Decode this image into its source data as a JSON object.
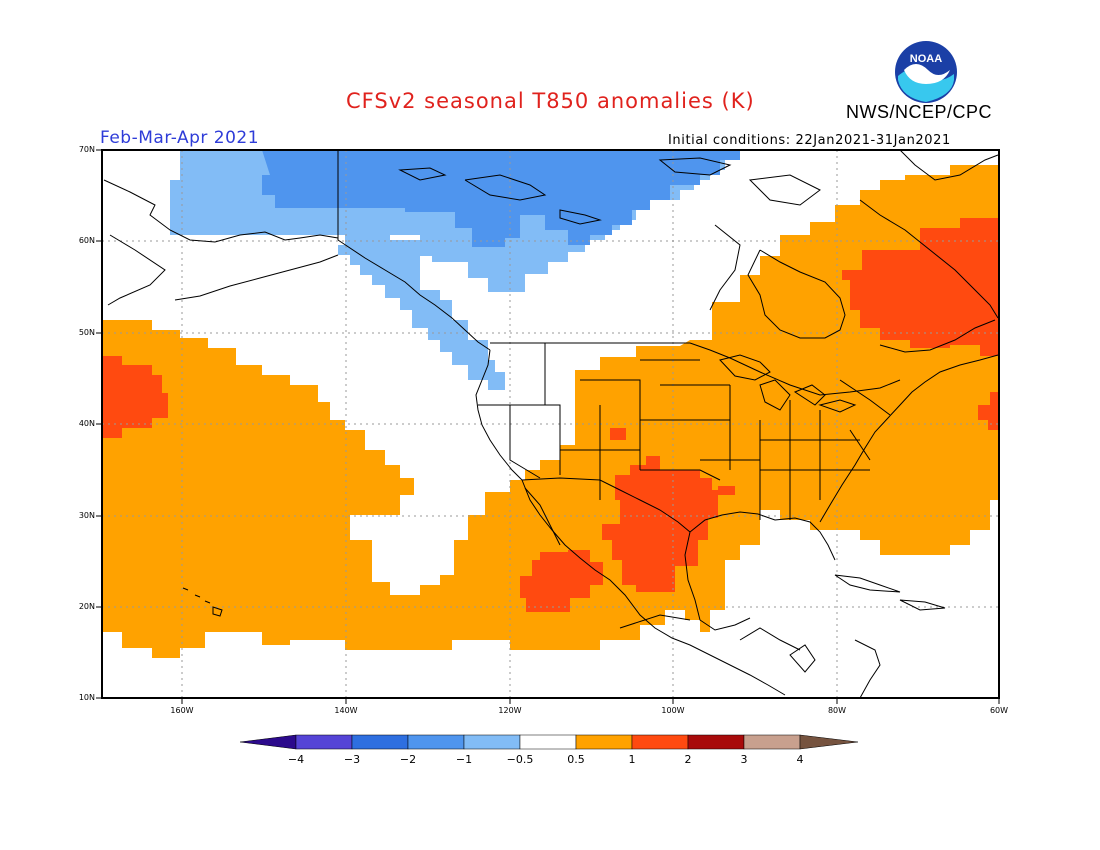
{
  "title": "CFSv2 seasonal T850 anomalies (K)",
  "organization": "NWS/NCEP/CPC",
  "logo_text": "NOAA",
  "season": "Feb-Mar-Apr 2021",
  "initial_conditions": "Initial conditions: 22Jan2021-31Jan2021",
  "lat_labels": [
    "70N",
    "60N",
    "50N",
    "40N",
    "30N",
    "20N",
    "10N"
  ],
  "lon_labels": [
    "160W",
    "140W",
    "120W",
    "100W",
    "80W",
    "60W"
  ],
  "colorbar": {
    "labels": [
      "−4",
      "−3",
      "−2",
      "−1",
      "−0.5",
      "0.5",
      "1",
      "2",
      "3",
      "4"
    ],
    "colors": [
      "#2c0a8c",
      "#5544d6",
      "#2e6fe0",
      "#4f95ee",
      "#82bcf6",
      "#ffffff",
      "#ffa200",
      "#ff4a10",
      "#a80a0a",
      "#c8a08e",
      "#76533f"
    ]
  },
  "colors": {
    "title": "#e0221d",
    "season": "#2e3cd8",
    "land_border": "#000000",
    "grid": "#999999"
  }
}
